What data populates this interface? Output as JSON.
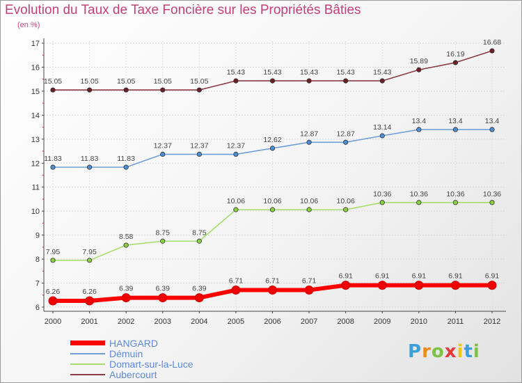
{
  "chart_data": {
    "type": "line",
    "title": "Evolution du Taux de Taxe Foncière sur les Propriétés Bâties",
    "ylabel": "(en %)",
    "xlabel": "",
    "x": [
      "2000",
      "2001",
      "2002",
      "2003",
      "2004",
      "2005",
      "2006",
      "2007",
      "2008",
      "2009",
      "2010",
      "2011",
      "2012"
    ],
    "ylim": [
      6,
      17
    ],
    "yticks": [
      "6",
      "7",
      "8",
      "9",
      "10",
      "11",
      "12",
      "13",
      "14",
      "15",
      "16",
      "17"
    ],
    "grid": true,
    "legend_position": "bottom-left",
    "series": [
      {
        "name": "HANGARD",
        "color": "#ff0000",
        "marker_color": "#ee0000",
        "weight": "thick",
        "values": [
          6.26,
          6.26,
          6.39,
          6.39,
          6.39,
          6.71,
          6.71,
          6.71,
          6.91,
          6.91,
          6.91,
          6.91,
          6.91
        ],
        "labels": [
          "6.26",
          "6.26",
          "6.39",
          "6.39",
          "6.39",
          "6.71",
          "6.71",
          "6.71",
          "6.91",
          "6.91",
          "6.91",
          "6.91",
          "6.91"
        ]
      },
      {
        "name": "Démuin",
        "color": "#6f9fd8",
        "marker_color": "#4b8ed4",
        "weight": "thin",
        "values": [
          11.83,
          11.83,
          11.83,
          12.37,
          12.37,
          12.37,
          12.62,
          12.87,
          12.87,
          13.14,
          13.4,
          13.4,
          13.4
        ],
        "labels": [
          "11.83",
          "11.83",
          "11.83",
          "12.37",
          "12.37",
          "12.37",
          "12.62",
          "12.87",
          "12.87",
          "13.14",
          "13.4",
          "13.4",
          "13.4"
        ]
      },
      {
        "name": "Domart-sur-la-Luce",
        "color": "#a8dc6e",
        "marker_color": "#88d040",
        "weight": "thin",
        "values": [
          7.95,
          7.95,
          8.58,
          8.75,
          8.75,
          10.06,
          10.06,
          10.06,
          10.06,
          10.36,
          10.36,
          10.36,
          10.36
        ],
        "labels": [
          "7.95",
          "7.95",
          "8.58",
          "8.75",
          "8.75",
          "10.06",
          "10.06",
          "10.06",
          "10.06",
          "10.36",
          "10.36",
          "10.36",
          "10.36"
        ]
      },
      {
        "name": "Aubercourt",
        "color": "#8c3a44",
        "marker_color": "#6e1f26",
        "weight": "thin",
        "values": [
          15.05,
          15.05,
          15.05,
          15.05,
          15.05,
          15.43,
          15.43,
          15.43,
          15.43,
          15.43,
          15.89,
          16.19,
          16.68
        ],
        "labels": [
          "15.05",
          "15.05",
          "15.05",
          "15.05",
          "15.05",
          "15.43",
          "15.43",
          "15.43",
          "15.43",
          "15.43",
          "15.89",
          "16.19",
          "16.68"
        ]
      }
    ]
  },
  "branding": {
    "logo_letters": [
      "P",
      "r",
      "o",
      "x",
      "i",
      "t",
      "i"
    ],
    "logo_colors": [
      "#3aa0d8",
      "#f08a1e",
      "#7cc243",
      "#e8393a",
      "#f0c419",
      "#3aa0d8",
      "#7cc243"
    ]
  }
}
